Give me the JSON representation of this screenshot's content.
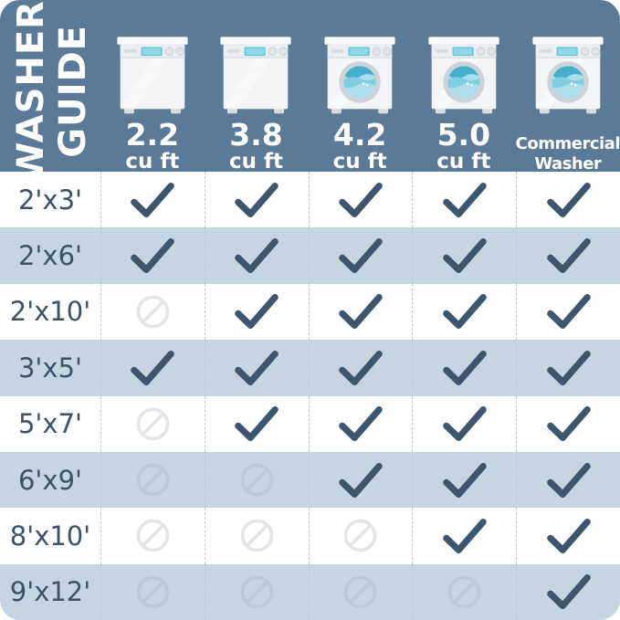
{
  "title": {
    "line1": "WASHER",
    "line2": "GUIDE"
  },
  "columns": [
    {
      "id": "2-2-cu-ft",
      "icon": "top-load-washer",
      "style": "capacity",
      "lines": [
        "2.2",
        "cu ft"
      ]
    },
    {
      "id": "3-8-cu-ft",
      "icon": "top-load-washer",
      "style": "capacity",
      "lines": [
        "3.8",
        "cu ft"
      ]
    },
    {
      "id": "4-2-cu-ft",
      "icon": "front-load-washer",
      "style": "capacity",
      "lines": [
        "4.2",
        "cu ft"
      ]
    },
    {
      "id": "5-0-cu-ft",
      "icon": "front-load-washer",
      "style": "capacity",
      "lines": [
        "5.0",
        "cu ft"
      ]
    },
    {
      "id": "commercial",
      "icon": "front-load-washer",
      "style": "text",
      "lines": [
        "Commercial",
        "Washer"
      ]
    }
  ],
  "rows": [
    {
      "label": "2'x3'",
      "cells": [
        "yes",
        "yes",
        "yes",
        "yes",
        "yes"
      ]
    },
    {
      "label": "2'x6'",
      "cells": [
        "yes",
        "yes",
        "yes",
        "yes",
        "yes"
      ]
    },
    {
      "label": "2'x10'",
      "cells": [
        "no",
        "yes",
        "yes",
        "yes",
        "yes"
      ]
    },
    {
      "label": "3'x5'",
      "cells": [
        "yes",
        "yes",
        "yes",
        "yes",
        "yes"
      ]
    },
    {
      "label": "5'x7'",
      "cells": [
        "no",
        "yes",
        "yes",
        "yes",
        "yes"
      ]
    },
    {
      "label": "6'x9'",
      "cells": [
        "no",
        "no",
        "yes",
        "yes",
        "yes"
      ]
    },
    {
      "label": "8'x10'",
      "cells": [
        "no",
        "no",
        "no",
        "yes",
        "yes"
      ]
    },
    {
      "label": "9'x12'",
      "cells": [
        "no",
        "no",
        "no",
        "no",
        "yes"
      ]
    }
  ],
  "legend": {
    "yes": "check-icon",
    "no": "prohibited-icon"
  },
  "colors": {
    "header_bg": "#5b7a98",
    "row_bg": "#ffffff",
    "row_alt_bg": "#c6d5e2",
    "title_text": "#ffffff",
    "row_label_text": "#3d5267",
    "check": "#3e566d",
    "prohibited": "#e3e6e9",
    "prohibited_on_alt": "#bdc9d4",
    "dashed_divider": "#c2c8ce"
  },
  "chart_data": {
    "type": "table",
    "title": "WASHER GUIDE",
    "columns": [
      "2.2 cu ft",
      "3.8 cu ft",
      "4.2 cu ft",
      "5.0 cu ft",
      "Commercial Washer"
    ],
    "row_labels": [
      "2'x3'",
      "2'x6'",
      "2'x10'",
      "3'x5'",
      "5'x7'",
      "6'x9'",
      "8'x10'",
      "9'x12'"
    ],
    "values": [
      [
        "yes",
        "yes",
        "yes",
        "yes",
        "yes"
      ],
      [
        "yes",
        "yes",
        "yes",
        "yes",
        "yes"
      ],
      [
        "no",
        "yes",
        "yes",
        "yes",
        "yes"
      ],
      [
        "yes",
        "yes",
        "yes",
        "yes",
        "yes"
      ],
      [
        "no",
        "yes",
        "yes",
        "yes",
        "yes"
      ],
      [
        "no",
        "no",
        "yes",
        "yes",
        "yes"
      ],
      [
        "no",
        "no",
        "no",
        "yes",
        "yes"
      ],
      [
        "no",
        "no",
        "no",
        "no",
        "yes"
      ]
    ]
  }
}
